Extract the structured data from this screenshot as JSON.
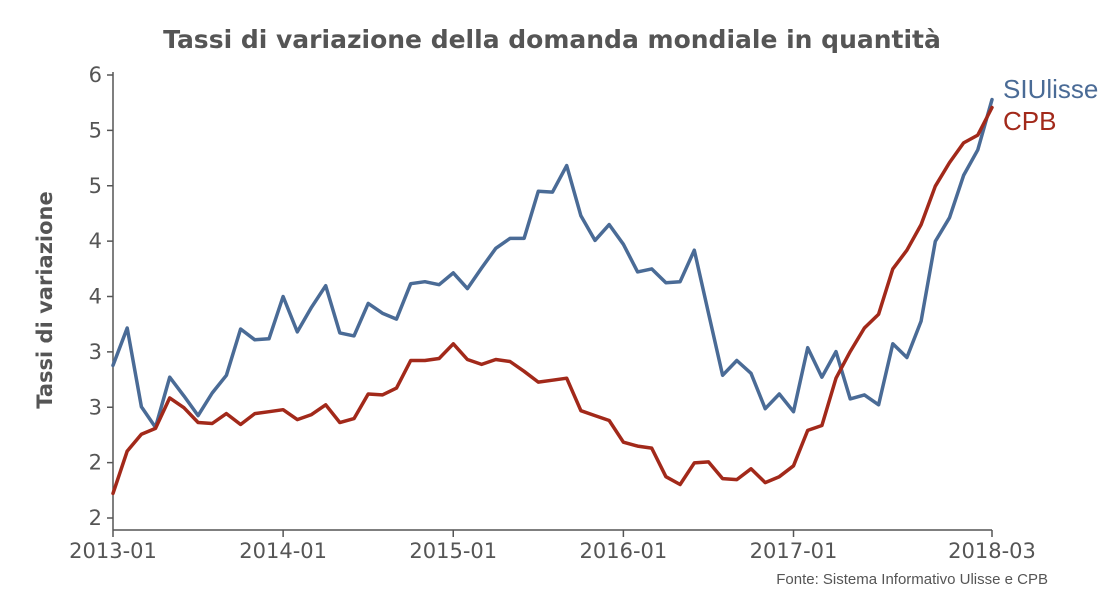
{
  "chart_data": {
    "type": "line",
    "title": "Tassi di variazione della domanda mondiale in quantità",
    "xlabel": "",
    "ylabel": "Tassi di variazione",
    "source": "Fonte: Sistema Informativo Ulisse e CPB",
    "x_tick_labels": [
      "2013-01",
      "2014-01",
      "2015-01",
      "2016-01",
      "2017-01",
      "2018-03"
    ],
    "y_tick_labels": [
      "2",
      "2",
      "3",
      "3",
      "4",
      "4",
      "5",
      "5",
      "6"
    ],
    "ylim": [
      1.5,
      6.0
    ],
    "grid": false,
    "legend": "direct labels at right end of lines",
    "colors": {
      "SIUlisse": "#4a6b96",
      "CPB": "#a2291a"
    },
    "series": [
      {
        "name": "SIUlisse",
        "values": [
          3.05,
          3.43,
          2.63,
          2.42,
          2.93,
          2.74,
          2.54,
          2.77,
          2.95,
          3.42,
          3.31,
          3.32,
          3.75,
          3.39,
          3.64,
          3.86,
          3.38,
          3.35,
          3.68,
          3.58,
          3.52,
          3.88,
          3.9,
          3.87,
          3.99,
          3.83,
          4.04,
          4.24,
          4.34,
          4.34,
          4.82,
          4.81,
          5.08,
          4.57,
          4.32,
          4.48,
          4.28,
          4.0,
          4.03,
          3.89,
          3.9,
          4.22,
          3.58,
          2.95,
          3.1,
          2.97,
          2.61,
          2.76,
          2.58,
          3.23,
          2.93,
          3.19,
          2.71,
          2.75,
          2.65,
          3.27,
          3.13,
          3.5,
          4.31,
          4.55,
          4.98,
          5.24,
          5.75
        ]
      },
      {
        "name": "CPB",
        "values": [
          1.75,
          2.18,
          2.35,
          2.41,
          2.72,
          2.62,
          2.47,
          2.46,
          2.56,
          2.45,
          2.56,
          2.58,
          2.6,
          2.5,
          2.55,
          2.65,
          2.47,
          2.51,
          2.76,
          2.75,
          2.82,
          3.1,
          3.1,
          3.12,
          3.27,
          3.11,
          3.06,
          3.11,
          3.09,
          2.99,
          2.88,
          2.9,
          2.92,
          2.59,
          2.54,
          2.49,
          2.27,
          2.23,
          2.21,
          1.92,
          1.84,
          2.06,
          2.07,
          1.9,
          1.89,
          2.0,
          1.86,
          1.92,
          2.03,
          2.39,
          2.44,
          2.92,
          3.19,
          3.43,
          3.57,
          4.03,
          4.22,
          4.48,
          4.87,
          5.11,
          5.31,
          5.39,
          5.67
        ]
      }
    ]
  }
}
